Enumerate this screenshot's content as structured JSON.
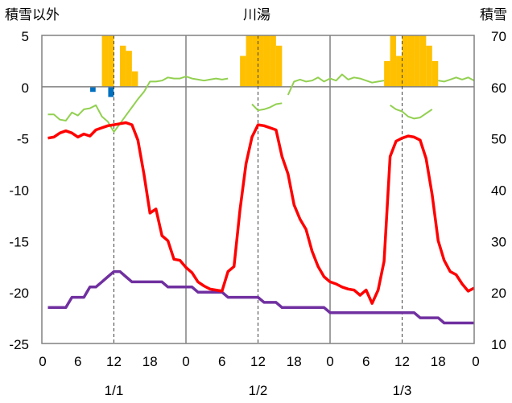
{
  "chart_data": {
    "type": "line",
    "title": "川湯",
    "left_axis_label": "積雪以外",
    "right_axis_label": "積雪",
    "left_ylim": [
      -25,
      5
    ],
    "left_yticks": [
      5,
      0,
      -5,
      -10,
      -15,
      -20,
      -25
    ],
    "right_ylim": [
      10,
      70
    ],
    "right_yticks": [
      70,
      60,
      50,
      40,
      30,
      20,
      10
    ],
    "xlim": [
      0,
      72
    ],
    "x_tick_labels": [
      "0",
      "6",
      "12",
      "18",
      "0",
      "6",
      "12",
      "18",
      "0",
      "6",
      "12",
      "18",
      "0"
    ],
    "date_labels": [
      {
        "text": "1/1",
        "hour": 12
      },
      {
        "text": "1/2",
        "hour": 36
      },
      {
        "text": "1/3",
        "hour": 60
      }
    ],
    "day_dividers_hour": [
      24,
      48
    ],
    "noon_markers_hour": [
      12,
      36,
      60
    ],
    "colors": {
      "temperature": "#ff0000",
      "snow_depth": "#7030a0",
      "wind": "#92d050",
      "snowfall": "#ffc000",
      "precip_negative": "#0070c0",
      "grid": "#808080",
      "noon_marker": "#404040"
    },
    "series": [
      {
        "key": "temperature",
        "axis": "left",
        "kind": "line",
        "x": [
          1,
          2,
          3,
          4,
          5,
          6,
          7,
          8,
          9,
          10,
          11,
          12,
          13,
          14,
          15,
          16,
          17,
          18,
          19,
          20,
          21,
          22,
          23,
          24,
          25,
          26,
          27,
          28,
          29,
          30,
          31,
          32,
          33,
          34,
          35,
          36,
          37,
          38,
          39,
          40,
          41,
          42,
          43,
          44,
          45,
          46,
          47,
          48,
          49,
          50,
          51,
          52,
          53,
          54,
          55,
          56,
          57,
          58,
          59,
          60,
          61,
          62,
          63,
          64,
          65,
          66,
          67,
          68,
          69,
          70,
          71,
          72
        ],
        "y": [
          -5.0,
          -4.9,
          -4.5,
          -4.3,
          -4.5,
          -4.9,
          -4.6,
          -4.8,
          -4.2,
          -4.0,
          -3.8,
          -3.7,
          -3.6,
          -3.5,
          -3.7,
          -5.2,
          -8.5,
          -12.3,
          -11.9,
          -14.5,
          -15.0,
          -16.8,
          -16.9,
          -17.6,
          -18.1,
          -19.0,
          -19.4,
          -19.7,
          -19.8,
          -19.9,
          -18.0,
          -17.5,
          -12.0,
          -7.5,
          -4.9,
          -3.7,
          -3.8,
          -4.0,
          -4.2,
          -6.8,
          -8.5,
          -11.5,
          -12.9,
          -13.9,
          -16.0,
          -17.5,
          -18.5,
          -19.0,
          -19.2,
          -19.5,
          -19.7,
          -19.8,
          -20.3,
          -19.8,
          -21.1,
          -19.8,
          -17.0,
          -6.8,
          -5.3,
          -5.0,
          -4.8,
          -4.9,
          -5.2,
          -7.0,
          -10.5,
          -15.0,
          -16.9,
          -18.0,
          -18.3,
          -19.2,
          -19.9,
          -19.6
        ]
      },
      {
        "key": "snow_depth",
        "axis": "right",
        "kind": "line",
        "x": [
          1,
          4,
          5,
          6,
          7,
          8,
          9,
          10,
          11,
          12,
          13,
          14,
          15,
          16,
          17,
          18,
          19,
          20,
          21,
          22,
          23,
          24,
          25,
          26,
          27,
          28,
          29,
          30,
          31,
          32,
          33,
          34,
          35,
          36,
          37,
          38,
          39,
          40,
          41,
          42,
          43,
          44,
          45,
          46,
          47,
          48,
          49,
          50,
          51,
          52,
          53,
          54,
          55,
          56,
          57,
          58,
          59,
          60,
          61,
          62,
          63,
          64,
          65,
          66,
          67,
          68,
          69,
          70,
          71,
          72
        ],
        "y": [
          17,
          17,
          19,
          19,
          19,
          21,
          21,
          22,
          23,
          24,
          24,
          23,
          22,
          22,
          22,
          22,
          22,
          22,
          21,
          21,
          21,
          21,
          21,
          20,
          20,
          20,
          20,
          20,
          19,
          19,
          19,
          19,
          19,
          19,
          18,
          18,
          18,
          17,
          17,
          17,
          17,
          17,
          17,
          17,
          17,
          16,
          16,
          16,
          16,
          16,
          16,
          16,
          16,
          16,
          16,
          16,
          16,
          16,
          16,
          16,
          15,
          15,
          15,
          15,
          14,
          14,
          14,
          14,
          14,
          14
        ]
      },
      {
        "key": "wind",
        "axis": "left",
        "kind": "line",
        "segments": [
          {
            "x": [
              1,
              2,
              3,
              4,
              5,
              6,
              7,
              8,
              9,
              10,
              11,
              12,
              13,
              14,
              15,
              16,
              17,
              18,
              19,
              20,
              21,
              22,
              23,
              24,
              25,
              26,
              27,
              28,
              29,
              30,
              31
            ],
            "y": [
              -2.7,
              -2.7,
              -3.2,
              -3.3,
              -2.5,
              -2.8,
              -2.2,
              -2.1,
              -1.8,
              -2.9,
              -3.4,
              -4.4,
              -3.6,
              -2.8,
              -2.0,
              -1.2,
              -0.5,
              0.5,
              0.5,
              0.6,
              0.9,
              0.8,
              0.8,
              1.0,
              0.8,
              0.7,
              0.6,
              0.7,
              0.8,
              0.7,
              0.8
            ]
          },
          {
            "x": [
              35,
              36,
              37,
              38,
              39,
              40
            ],
            "y": [
              -1.7,
              -2.3,
              -2.2,
              -2.0,
              -1.7,
              -1.6
            ]
          },
          {
            "x": [
              41,
              42,
              43,
              44,
              45,
              46,
              47,
              48,
              49,
              50,
              51,
              52,
              53,
              54,
              55,
              56,
              57
            ],
            "y": [
              -0.8,
              0.5,
              0.7,
              0.5,
              0.6,
              0.9,
              0.5,
              0.8,
              0.6,
              1.2,
              0.7,
              0.9,
              0.8,
              0.6,
              0.4,
              0.5,
              0.6
            ]
          },
          {
            "x": [
              58,
              59,
              60,
              61,
              62,
              63,
              64,
              65
            ],
            "y": [
              -1.8,
              -2.2,
              -2.4,
              -2.9,
              -3.1,
              -3.0,
              -2.6,
              -2.2
            ]
          },
          {
            "x": [
              66,
              67,
              68,
              69,
              70,
              71,
              72
            ],
            "y": [
              0.6,
              0.5,
              0.7,
              0.9,
              0.7,
              0.9,
              0.6
            ]
          }
        ]
      },
      {
        "key": "snowfall",
        "axis": "left",
        "kind": "bar",
        "x": [
          11,
          12,
          13,
          14,
          15,
          16,
          34,
          35,
          36,
          37,
          38,
          39,
          40,
          58,
          59,
          60,
          61,
          62,
          63,
          64,
          65,
          66
        ],
        "y": [
          5.0,
          5.0,
          0,
          4.0,
          3.5,
          1.5,
          3.0,
          5.0,
          5.0,
          5.0,
          5.0,
          5.0,
          4.0,
          2.5,
          5.0,
          3.0,
          5.0,
          5.0,
          5.0,
          5.0,
          4.0,
          2.5
        ]
      },
      {
        "key": "precip_negative",
        "axis": "left",
        "kind": "bar",
        "x": [
          9,
          12
        ],
        "y": [
          -0.5,
          -1.0
        ]
      }
    ]
  }
}
